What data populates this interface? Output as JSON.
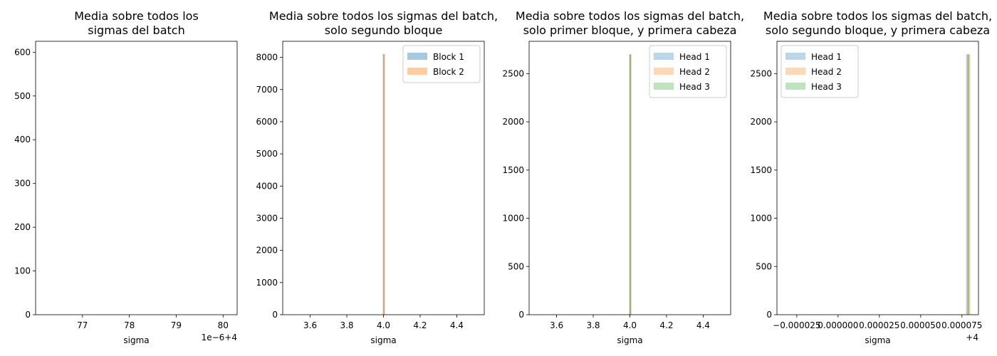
{
  "chart_data": [
    {
      "type": "bar",
      "title_lines": [
        "Media sobre todos los",
        "sigmas del batch"
      ],
      "xlabel": "sigma",
      "offset_text": "1e−6+4",
      "xticks": [
        77,
        78,
        79,
        80
      ],
      "xtick_labels": [
        "77",
        "78",
        "79",
        "80"
      ],
      "xlim": [
        76.0,
        80.3
      ],
      "yticks": [
        0,
        100,
        200,
        300,
        400,
        500,
        600
      ],
      "ytick_labels": [
        "0",
        "100",
        "200",
        "300",
        "400",
        "500",
        "600"
      ],
      "ylim": [
        0,
        625
      ],
      "legend": null,
      "series": []
    },
    {
      "type": "bar",
      "title_lines": [
        "Media sobre todos los sigmas del batch,",
        "solo segundo bloque"
      ],
      "xlabel": "sigma",
      "xticks": [
        3.6,
        3.8,
        4.0,
        4.2,
        4.4
      ],
      "xtick_labels": [
        "3.6",
        "3.8",
        "4.0",
        "4.2",
        "4.4"
      ],
      "xlim": [
        3.45,
        4.55
      ],
      "yticks": [
        0,
        1000,
        2000,
        3000,
        4000,
        5000,
        6000,
        7000,
        8000
      ],
      "ytick_labels": [
        "0",
        "1000",
        "2000",
        "3000",
        "4000",
        "5000",
        "6000",
        "7000",
        "8000"
      ],
      "ylim": [
        0,
        8500
      ],
      "legend": "top-right",
      "series": [
        {
          "name": "Block 1",
          "color": "#1f77b4",
          "opacity": 0.4,
          "bins": [
            {
              "x0": 3.997,
              "x1": 4.007,
              "count": 8100
            }
          ]
        },
        {
          "name": "Block 2",
          "color": "#ff7f0e",
          "opacity": 0.4,
          "bins": [
            {
              "x0": 3.997,
              "x1": 4.007,
              "count": 8100
            }
          ]
        }
      ]
    },
    {
      "type": "bar",
      "title_lines": [
        "Media sobre todos los sigmas del batch,",
        "solo primer bloque, y primera cabeza"
      ],
      "xlabel": "sigma",
      "xticks": [
        3.6,
        3.8,
        4.0,
        4.2,
        4.4
      ],
      "xtick_labels": [
        "3.6",
        "3.8",
        "4.0",
        "4.2",
        "4.4"
      ],
      "xlim": [
        3.45,
        4.55
      ],
      "yticks": [
        0,
        500,
        1000,
        1500,
        2000,
        2500
      ],
      "ytick_labels": [
        "0",
        "500",
        "1000",
        "1500",
        "2000",
        "2500"
      ],
      "ylim": [
        0,
        2835
      ],
      "legend": "top-right",
      "series": [
        {
          "name": "Head 1",
          "color": "#1f77b4",
          "opacity": 0.3,
          "bins": [
            {
              "x0": 3.997,
              "x1": 4.007,
              "count": 2700
            }
          ]
        },
        {
          "name": "Head 2",
          "color": "#ff7f0e",
          "opacity": 0.3,
          "bins": [
            {
              "x0": 3.997,
              "x1": 4.007,
              "count": 2700
            }
          ]
        },
        {
          "name": "Head 3",
          "color": "#2ca02c",
          "opacity": 0.3,
          "bins": [
            {
              "x0": 3.997,
              "x1": 4.007,
              "count": 2700
            }
          ]
        }
      ]
    },
    {
      "type": "bar",
      "title_lines": [
        "Media sobre todos los sigmas del batch,",
        "solo segundo bloque, y primera cabeza"
      ],
      "xlabel": "sigma",
      "offset_text": "+4",
      "xticks": [
        -2.5e-05,
        0.0,
        2.5e-05,
        5e-05,
        7.5e-05
      ],
      "xtick_labels": [
        "−0.000025",
        "0.000000",
        "0.000025",
        "0.000050",
        "0.000075"
      ],
      "xlim": [
        -3.7e-05,
        8.5e-05
      ],
      "yticks": [
        0,
        500,
        1000,
        1500,
        2000,
        2500
      ],
      "ytick_labels": [
        "0",
        "500",
        "1000",
        "1500",
        "2000",
        "2500"
      ],
      "ylim": [
        0,
        2835
      ],
      "legend": "top-left",
      "series": [
        {
          "name": "Head 1",
          "color": "#1f77b4",
          "opacity": 0.3,
          "bins": [
            {
              "x0": 7.75e-05,
              "x1": 7.9e-05,
              "count": 2700
            }
          ]
        },
        {
          "name": "Head 2",
          "color": "#ff7f0e",
          "opacity": 0.3,
          "bins": [
            {
              "x0": 7.8e-05,
              "x1": 7.95e-05,
              "count": 2700
            }
          ]
        },
        {
          "name": "Head 3",
          "color": "#2ca02c",
          "opacity": 0.3,
          "bins": [
            {
              "x0": 7.85e-05,
              "x1": 8e-05,
              "count": 2700
            }
          ]
        }
      ]
    }
  ]
}
